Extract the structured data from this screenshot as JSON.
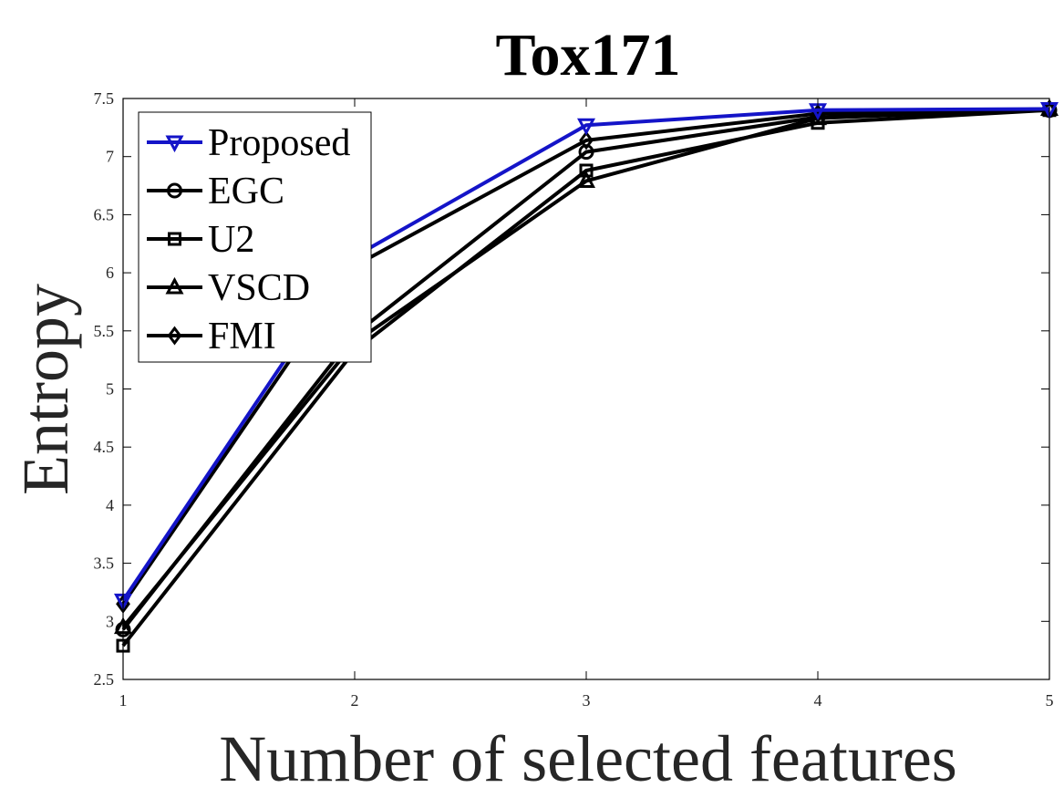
{
  "chart_data": {
    "type": "line",
    "title": "Tox171",
    "xlabel": "Number of selected features",
    "ylabel": "Entropy",
    "x": [
      1,
      2,
      3,
      4,
      5
    ],
    "xticks": [
      "1",
      "2",
      "3",
      "4",
      "5"
    ],
    "xlim": [
      1,
      5
    ],
    "ylim": [
      2.5,
      7.5
    ],
    "yticks": [
      "2.5",
      "3",
      "3.5",
      "4",
      "4.5",
      "5",
      "5.5",
      "6",
      "6.5",
      "7",
      "7.5"
    ],
    "grid": false,
    "legend_position": "top-left",
    "series": [
      {
        "name": "Proposed",
        "marker": "triangle-down",
        "color": "#1414c8",
        "values": [
          3.18,
          6.14,
          7.27,
          7.4,
          7.41
        ]
      },
      {
        "name": "EGC",
        "marker": "circle",
        "color": "#000000",
        "values": [
          2.93,
          5.47,
          7.04,
          7.34,
          7.4
        ]
      },
      {
        "name": "U2",
        "marker": "square",
        "color": "#000000",
        "values": [
          2.79,
          5.33,
          6.88,
          7.29,
          7.4
        ]
      },
      {
        "name": "VSCD",
        "marker": "triangle-up",
        "color": "#000000",
        "values": [
          2.95,
          5.4,
          6.79,
          7.33,
          7.41
        ]
      },
      {
        "name": "FMI",
        "marker": "diamond",
        "color": "#000000",
        "values": [
          3.15,
          6.06,
          7.14,
          7.37,
          7.41
        ]
      }
    ]
  }
}
